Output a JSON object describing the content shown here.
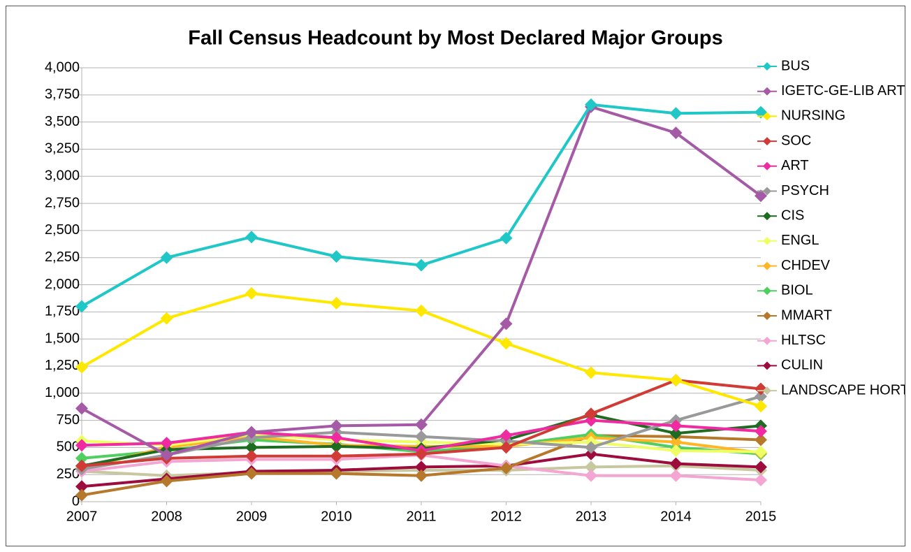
{
  "chart_data": {
    "type": "line",
    "title": "Fall Census Headcount by Most Declared Major Groups",
    "categories": [
      "2007",
      "2008",
      "2009",
      "2010",
      "2011",
      "2012",
      "2013",
      "2014",
      "2015"
    ],
    "ylim": [
      0,
      4000
    ],
    "yticks": [
      0,
      250,
      500,
      750,
      {
        "value": 1000,
        "label": "1,000"
      },
      {
        "value": 1250,
        "label": "1,250"
      },
      {
        "value": 1500,
        "label": "1,500"
      },
      {
        "value": 1750,
        "label": "1,750"
      },
      {
        "value": 2000,
        "label": "2,000"
      },
      {
        "value": 2250,
        "label": "2,250"
      },
      {
        "value": 2500,
        "label": "2,500"
      },
      {
        "value": 2750,
        "label": "2,750"
      },
      {
        "value": 3000,
        "label": "3,000"
      },
      {
        "value": 3250,
        "label": "3,250"
      },
      {
        "value": 3500,
        "label": "3,500"
      },
      {
        "value": 3750,
        "label": "3,750"
      },
      {
        "value": 4000,
        "label": "4,000"
      }
    ],
    "grid": true,
    "legend": "right",
    "series": [
      {
        "name": "BUS",
        "color": "#1fc7c7",
        "values": [
          1800,
          2250,
          2440,
          2260,
          2180,
          2430,
          3660,
          3580,
          3590
        ]
      },
      {
        "name": "IGETC-GE-LIB ART",
        "color": "#a55aa5",
        "values": [
          860,
          430,
          640,
          700,
          710,
          1640,
          3640,
          3400,
          2820
        ]
      },
      {
        "name": "NURSING",
        "color": "#ffe800",
        "values": [
          1240,
          1690,
          1920,
          1830,
          1760,
          1460,
          1190,
          1120,
          880
        ]
      },
      {
        "name": "SOC",
        "color": "#d03b36",
        "values": [
          330,
          400,
          420,
          420,
          440,
          500,
          810,
          1120,
          1040
        ]
      },
      {
        "name": "ART",
        "color": "#f02aa0",
        "values": [
          520,
          540,
          640,
          590,
          470,
          610,
          750,
          700,
          650
        ]
      },
      {
        "name": "PSYCH",
        "color": "#999999",
        "values": [
          300,
          430,
          590,
          640,
          600,
          560,
          500,
          750,
          970
        ]
      },
      {
        "name": "CIS",
        "color": "#1e6b22",
        "values": [
          330,
          480,
          500,
          510,
          490,
          570,
          800,
          630,
          700
        ]
      },
      {
        "name": "ENGL",
        "color": "#eeff66",
        "values": [
          560,
          520,
          620,
          570,
          550,
          530,
          550,
          470,
          460
        ]
      },
      {
        "name": "CHDEV",
        "color": "#ffb626",
        "values": [
          310,
          500,
          600,
          520,
          510,
          510,
          590,
          550,
          450
        ]
      },
      {
        "name": "BIOL",
        "color": "#4fcf5f",
        "values": [
          400,
          470,
          570,
          530,
          460,
          520,
          620,
          500,
          440
        ]
      },
      {
        "name": "MMART",
        "color": "#b6782a",
        "values": [
          60,
          190,
          260,
          260,
          240,
          310,
          610,
          600,
          570
        ]
      },
      {
        "name": "HLTSC",
        "color": "#f4a6d3",
        "values": [
          280,
          370,
          390,
          390,
          430,
          330,
          240,
          240,
          200
        ]
      },
      {
        "name": "CULIN",
        "color": "#9c0c3c",
        "values": [
          140,
          210,
          280,
          290,
          320,
          330,
          440,
          350,
          320
        ]
      },
      {
        "name": "LANDSCAPE HORT",
        "color": "#c7c7a0",
        "values": [
          280,
          240,
          270,
          280,
          290,
          290,
          320,
          330,
          290
        ]
      }
    ]
  }
}
